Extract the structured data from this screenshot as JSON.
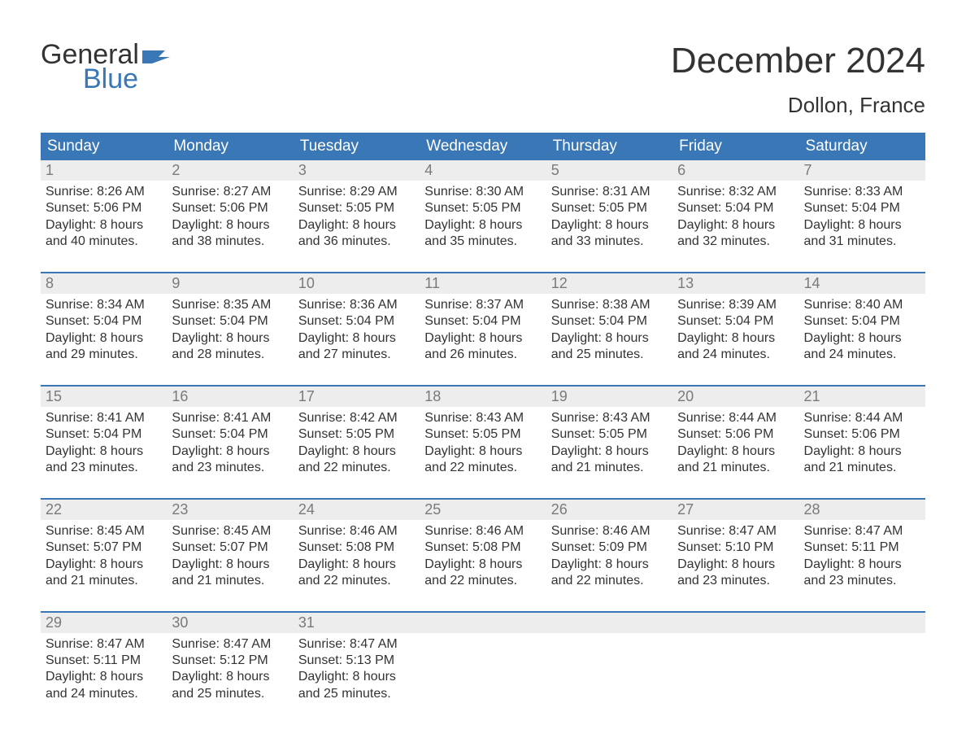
{
  "logo": {
    "line1": "General",
    "line2": "Blue",
    "flag_color": "#3a77b7"
  },
  "title": {
    "month": "December 2024",
    "location": "Dollon, France"
  },
  "colors": {
    "header_bg": "#3a77b7",
    "header_text": "#ffffff",
    "daynum_bg": "#ededed",
    "daynum_text": "#7a7a7a",
    "body_text": "#333333",
    "week_divider": "#3a77b7",
    "page_bg": "#ffffff"
  },
  "typography": {
    "month_title_fontsize": 44,
    "location_fontsize": 26,
    "header_fontsize": 19,
    "daynum_fontsize": 18,
    "body_fontsize": 16,
    "logo_fontsize": 34
  },
  "calendar": {
    "columns": [
      "Sunday",
      "Monday",
      "Tuesday",
      "Wednesday",
      "Thursday",
      "Friday",
      "Saturday"
    ],
    "weeks": [
      [
        {
          "day": "1",
          "sunrise": "Sunrise: 8:26 AM",
          "sunset": "Sunset: 5:06 PM",
          "daylight1": "Daylight: 8 hours",
          "daylight2": "and 40 minutes."
        },
        {
          "day": "2",
          "sunrise": "Sunrise: 8:27 AM",
          "sunset": "Sunset: 5:06 PM",
          "daylight1": "Daylight: 8 hours",
          "daylight2": "and 38 minutes."
        },
        {
          "day": "3",
          "sunrise": "Sunrise: 8:29 AM",
          "sunset": "Sunset: 5:05 PM",
          "daylight1": "Daylight: 8 hours",
          "daylight2": "and 36 minutes."
        },
        {
          "day": "4",
          "sunrise": "Sunrise: 8:30 AM",
          "sunset": "Sunset: 5:05 PM",
          "daylight1": "Daylight: 8 hours",
          "daylight2": "and 35 minutes."
        },
        {
          "day": "5",
          "sunrise": "Sunrise: 8:31 AM",
          "sunset": "Sunset: 5:05 PM",
          "daylight1": "Daylight: 8 hours",
          "daylight2": "and 33 minutes."
        },
        {
          "day": "6",
          "sunrise": "Sunrise: 8:32 AM",
          "sunset": "Sunset: 5:04 PM",
          "daylight1": "Daylight: 8 hours",
          "daylight2": "and 32 minutes."
        },
        {
          "day": "7",
          "sunrise": "Sunrise: 8:33 AM",
          "sunset": "Sunset: 5:04 PM",
          "daylight1": "Daylight: 8 hours",
          "daylight2": "and 31 minutes."
        }
      ],
      [
        {
          "day": "8",
          "sunrise": "Sunrise: 8:34 AM",
          "sunset": "Sunset: 5:04 PM",
          "daylight1": "Daylight: 8 hours",
          "daylight2": "and 29 minutes."
        },
        {
          "day": "9",
          "sunrise": "Sunrise: 8:35 AM",
          "sunset": "Sunset: 5:04 PM",
          "daylight1": "Daylight: 8 hours",
          "daylight2": "and 28 minutes."
        },
        {
          "day": "10",
          "sunrise": "Sunrise: 8:36 AM",
          "sunset": "Sunset: 5:04 PM",
          "daylight1": "Daylight: 8 hours",
          "daylight2": "and 27 minutes."
        },
        {
          "day": "11",
          "sunrise": "Sunrise: 8:37 AM",
          "sunset": "Sunset: 5:04 PM",
          "daylight1": "Daylight: 8 hours",
          "daylight2": "and 26 minutes."
        },
        {
          "day": "12",
          "sunrise": "Sunrise: 8:38 AM",
          "sunset": "Sunset: 5:04 PM",
          "daylight1": "Daylight: 8 hours",
          "daylight2": "and 25 minutes."
        },
        {
          "day": "13",
          "sunrise": "Sunrise: 8:39 AM",
          "sunset": "Sunset: 5:04 PM",
          "daylight1": "Daylight: 8 hours",
          "daylight2": "and 24 minutes."
        },
        {
          "day": "14",
          "sunrise": "Sunrise: 8:40 AM",
          "sunset": "Sunset: 5:04 PM",
          "daylight1": "Daylight: 8 hours",
          "daylight2": "and 24 minutes."
        }
      ],
      [
        {
          "day": "15",
          "sunrise": "Sunrise: 8:41 AM",
          "sunset": "Sunset: 5:04 PM",
          "daylight1": "Daylight: 8 hours",
          "daylight2": "and 23 minutes."
        },
        {
          "day": "16",
          "sunrise": "Sunrise: 8:41 AM",
          "sunset": "Sunset: 5:04 PM",
          "daylight1": "Daylight: 8 hours",
          "daylight2": "and 23 minutes."
        },
        {
          "day": "17",
          "sunrise": "Sunrise: 8:42 AM",
          "sunset": "Sunset: 5:05 PM",
          "daylight1": "Daylight: 8 hours",
          "daylight2": "and 22 minutes."
        },
        {
          "day": "18",
          "sunrise": "Sunrise: 8:43 AM",
          "sunset": "Sunset: 5:05 PM",
          "daylight1": "Daylight: 8 hours",
          "daylight2": "and 22 minutes."
        },
        {
          "day": "19",
          "sunrise": "Sunrise: 8:43 AM",
          "sunset": "Sunset: 5:05 PM",
          "daylight1": "Daylight: 8 hours",
          "daylight2": "and 21 minutes."
        },
        {
          "day": "20",
          "sunrise": "Sunrise: 8:44 AM",
          "sunset": "Sunset: 5:06 PM",
          "daylight1": "Daylight: 8 hours",
          "daylight2": "and 21 minutes."
        },
        {
          "day": "21",
          "sunrise": "Sunrise: 8:44 AM",
          "sunset": "Sunset: 5:06 PM",
          "daylight1": "Daylight: 8 hours",
          "daylight2": "and 21 minutes."
        }
      ],
      [
        {
          "day": "22",
          "sunrise": "Sunrise: 8:45 AM",
          "sunset": "Sunset: 5:07 PM",
          "daylight1": "Daylight: 8 hours",
          "daylight2": "and 21 minutes."
        },
        {
          "day": "23",
          "sunrise": "Sunrise: 8:45 AM",
          "sunset": "Sunset: 5:07 PM",
          "daylight1": "Daylight: 8 hours",
          "daylight2": "and 21 minutes."
        },
        {
          "day": "24",
          "sunrise": "Sunrise: 8:46 AM",
          "sunset": "Sunset: 5:08 PM",
          "daylight1": "Daylight: 8 hours",
          "daylight2": "and 22 minutes."
        },
        {
          "day": "25",
          "sunrise": "Sunrise: 8:46 AM",
          "sunset": "Sunset: 5:08 PM",
          "daylight1": "Daylight: 8 hours",
          "daylight2": "and 22 minutes."
        },
        {
          "day": "26",
          "sunrise": "Sunrise: 8:46 AM",
          "sunset": "Sunset: 5:09 PM",
          "daylight1": "Daylight: 8 hours",
          "daylight2": "and 22 minutes."
        },
        {
          "day": "27",
          "sunrise": "Sunrise: 8:47 AM",
          "sunset": "Sunset: 5:10 PM",
          "daylight1": "Daylight: 8 hours",
          "daylight2": "and 23 minutes."
        },
        {
          "day": "28",
          "sunrise": "Sunrise: 8:47 AM",
          "sunset": "Sunset: 5:11 PM",
          "daylight1": "Daylight: 8 hours",
          "daylight2": "and 23 minutes."
        }
      ],
      [
        {
          "day": "29",
          "sunrise": "Sunrise: 8:47 AM",
          "sunset": "Sunset: 5:11 PM",
          "daylight1": "Daylight: 8 hours",
          "daylight2": "and 24 minutes."
        },
        {
          "day": "30",
          "sunrise": "Sunrise: 8:47 AM",
          "sunset": "Sunset: 5:12 PM",
          "daylight1": "Daylight: 8 hours",
          "daylight2": "and 25 minutes."
        },
        {
          "day": "31",
          "sunrise": "Sunrise: 8:47 AM",
          "sunset": "Sunset: 5:13 PM",
          "daylight1": "Daylight: 8 hours",
          "daylight2": "and 25 minutes."
        },
        {
          "empty": true
        },
        {
          "empty": true
        },
        {
          "empty": true
        },
        {
          "empty": true
        }
      ]
    ]
  }
}
